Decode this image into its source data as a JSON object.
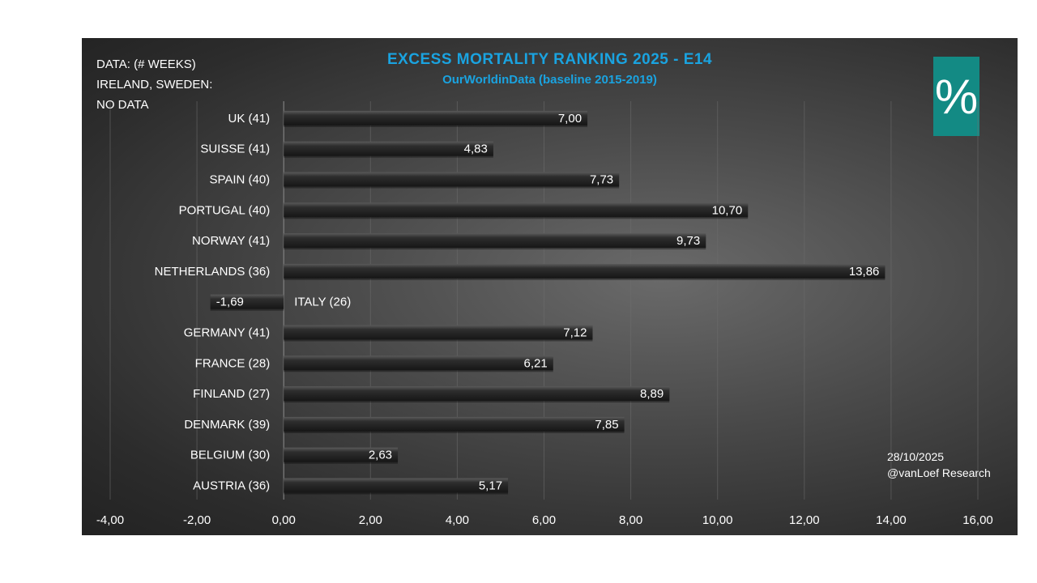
{
  "chart_data": {
    "type": "bar",
    "orientation": "horizontal",
    "title": "EXCESS MORTALITY RANKING 2025 - E14",
    "subtitle": "OurWorldinData (baseline 2015-2019)",
    "categories": [
      "UK (41)",
      "SUISSE (41)",
      "SPAIN (40)",
      "PORTUGAL (40)",
      "NORWAY (41)",
      "NETHERLANDS (36)",
      "ITALY (26)",
      "GERMANY (41)",
      "FRANCE (28)",
      "FINLAND (27)",
      "DENMARK (39)",
      "BELGIUM (30)",
      "AUSTRIA (36)"
    ],
    "values": [
      7.0,
      4.83,
      7.73,
      10.7,
      9.73,
      13.86,
      -1.69,
      7.12,
      6.21,
      8.89,
      7.85,
      2.63,
      5.17
    ],
    "value_labels": [
      "7,00",
      "4,83",
      "7,73",
      "10,70",
      "9,73",
      "13,86",
      "-1,69",
      "7,12",
      "6,21",
      "8,89",
      "7,85",
      "2,63",
      "5,17"
    ],
    "xlim": [
      -4,
      16
    ],
    "x_ticks": [
      "-4,00",
      "-2,00",
      "0,00",
      "2,00",
      "4,00",
      "6,00",
      "8,00",
      "10,00",
      "12,00",
      "14,00",
      "16,00"
    ],
    "grid": true,
    "bar_color": "#262626"
  },
  "notes": {
    "data_lines": [
      "DATA: (# WEEKS)",
      "IRELAND, SWEDEN:",
      "NO DATA"
    ],
    "date": "28/10/2025",
    "credit": "@vanLoef Research"
  },
  "badge": {
    "symbol": "%",
    "color": "#138a84"
  },
  "title_color": "#1aa3e0"
}
